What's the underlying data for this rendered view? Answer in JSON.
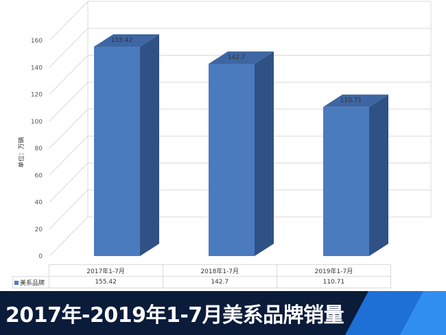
{
  "chart_data": {
    "type": "bar",
    "categories": [
      "2017年1-7月",
      "2018年1-7月",
      "2019年1-7月"
    ],
    "series": [
      {
        "name": "美系品牌",
        "values": [
          155.42,
          142.7,
          110.71
        ]
      }
    ],
    "data_labels": [
      "155.42",
      "142.7",
      "110.71"
    ],
    "ylabel": "单位：万辆",
    "ylim": [
      0,
      160
    ],
    "yticks": [
      0,
      20,
      40,
      60,
      80,
      100,
      120,
      140,
      160
    ],
    "grid": true,
    "legend_placement": "data-table-left",
    "style": "3d-column"
  },
  "table": {
    "series_label": "美系品牌",
    "values": [
      "155.42",
      "142.7",
      "110.71"
    ]
  },
  "colors": {
    "bar_front": "#4a7bbf",
    "bar_side": "#2f5185",
    "bar_top": "#3e66a2",
    "banner": "#0b1b3a",
    "banner_accent": "#1e6fd6"
  },
  "banner": {
    "title": "2017年-2019年1-7月美系品牌销量"
  }
}
